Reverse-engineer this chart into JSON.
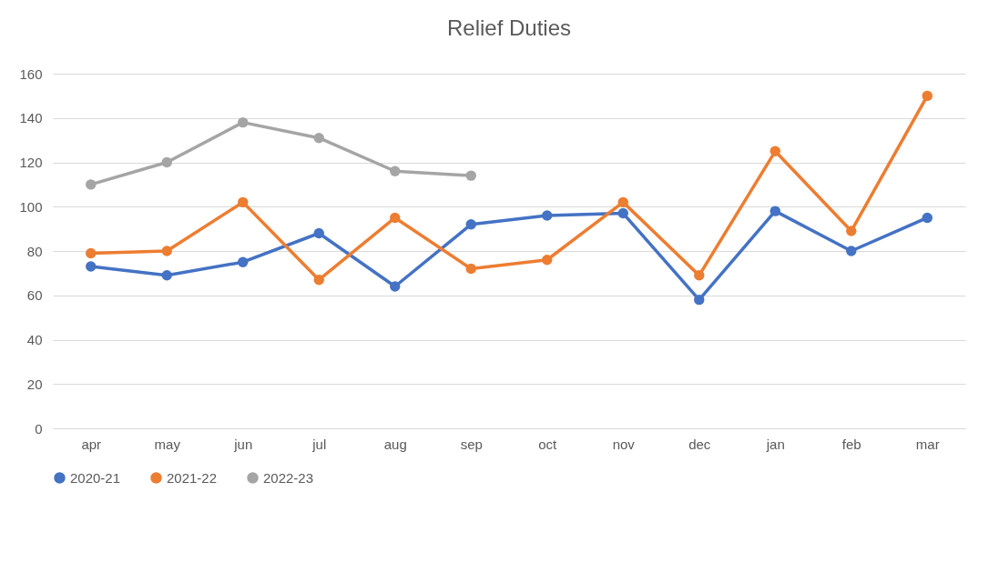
{
  "chart_data": {
    "type": "line",
    "title": "Relief Duties",
    "categories": [
      "apr",
      "may",
      "jun",
      "jul",
      "aug",
      "sep",
      "oct",
      "nov",
      "dec",
      "jan",
      "feb",
      "mar"
    ],
    "series": [
      {
        "name": "2020-21",
        "color": "#4472c4",
        "values": [
          73,
          69,
          75,
          88,
          64,
          92,
          96,
          97,
          58,
          98,
          80,
          95
        ]
      },
      {
        "name": "2021-22",
        "color": "#ed7d31",
        "values": [
          79,
          80,
          102,
          67,
          95,
          72,
          76,
          102,
          69,
          125,
          89,
          150
        ]
      },
      {
        "name": "2022-23",
        "color": "#a5a5a5",
        "values": [
          110,
          120,
          138,
          131,
          116,
          114,
          null,
          null,
          null,
          null,
          null,
          null
        ]
      }
    ],
    "ylim": [
      0,
      160
    ],
    "yticks": [
      0,
      20,
      40,
      60,
      80,
      100,
      120,
      140,
      160
    ],
    "grid": "y",
    "legend": "bottom",
    "marker": "circle",
    "line_style": "solid"
  }
}
